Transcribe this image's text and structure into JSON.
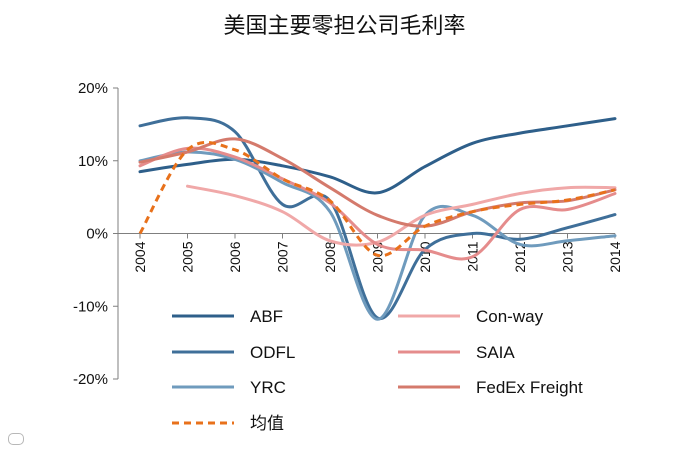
{
  "chart_data": {
    "type": "line",
    "title": "美国主要零担公司毛利率",
    "xlabel": "",
    "ylabel": "",
    "categories": [
      "2004",
      "2005",
      "2006",
      "2007",
      "2008",
      "2009",
      "2010",
      "2011",
      "2012",
      "2013",
      "2014"
    ],
    "ylim": [
      -20,
      20
    ],
    "yticks": [
      20,
      10,
      0,
      -10,
      -20
    ],
    "ytick_labels": [
      "20%",
      "10%",
      "0%",
      "-10%",
      "-20%"
    ],
    "grid": false,
    "legend_position": "bottom-inside",
    "series": [
      {
        "name": "ABF",
        "color": "#2e5f8a",
        "dash": false,
        "values": [
          8.5,
          9.5,
          10.2,
          9.3,
          7.8,
          5.6,
          9.2,
          12.4,
          13.8,
          14.8,
          15.8
        ]
      },
      {
        "name": "ODFL",
        "color": "#3f6f99",
        "dash": false,
        "values": [
          14.8,
          15.9,
          14.0,
          4.0,
          4.5,
          -11.6,
          -2.2,
          0.0,
          -0.8,
          0.8,
          2.6
        ]
      },
      {
        "name": "YRC",
        "color": "#6f9bbd",
        "dash": false,
        "values": [
          10.0,
          11.2,
          10.2,
          7.0,
          3.0,
          -11.8,
          2.5,
          2.5,
          -1.5,
          -1.0,
          -0.3
        ]
      },
      {
        "name": "Con-way",
        "color": "#f0a8a8",
        "dash": false,
        "values": [
          null,
          6.5,
          5.2,
          3.0,
          -1.0,
          -1.2,
          2.5,
          4.0,
          5.5,
          6.3,
          6.3
        ]
      },
      {
        "name": "SAIA",
        "color": "#e58c8c",
        "dash": false,
        "values": [
          9.3,
          11.7,
          10.5,
          7.5,
          4.2,
          -1.5,
          -2.3,
          -3.2,
          3.3,
          3.3,
          5.5
        ]
      },
      {
        "name": "FedEx Freight",
        "color": "#d47a6c",
        "dash": false,
        "values": [
          9.8,
          11.2,
          13.0,
          10.3,
          6.3,
          2.5,
          1.0,
          3.0,
          4.2,
          4.5,
          6.0
        ]
      },
      {
        "name": "均值",
        "color": "#e8711b",
        "dash": true,
        "values": [
          0.0,
          11.5,
          11.5,
          7.5,
          4.5,
          -3.0,
          1.0,
          3.0,
          4.0,
          4.6,
          6.0
        ]
      }
    ]
  }
}
